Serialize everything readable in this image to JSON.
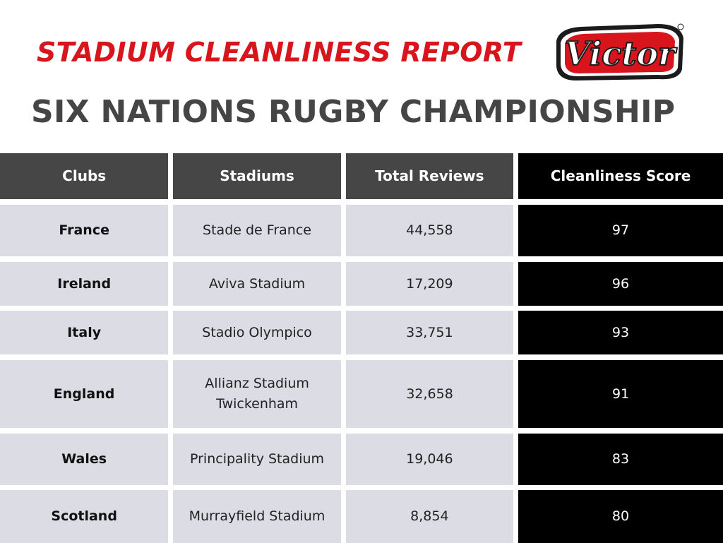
{
  "header": {
    "report_title": "STADIUM CLEANLINESS REPORT",
    "brand": "Victor",
    "championship_title": "SIX NATIONS RUGBY CHAMPIONSHIP"
  },
  "table": {
    "columns": [
      "Clubs",
      "Stadiums",
      "Total Reviews",
      "Cleanliness Score"
    ],
    "rows": [
      {
        "club": "France",
        "stadium": "Stade de France",
        "reviews": "44,558",
        "score": "97"
      },
      {
        "club": "Ireland",
        "stadium": "Aviva Stadium",
        "reviews": "17,209",
        "score": "96"
      },
      {
        "club": "Italy",
        "stadium": "Stadio Olympico",
        "reviews": "33,751",
        "score": "93"
      },
      {
        "club": "England",
        "stadium": "Allianz Stadium Twickenham",
        "reviews": "32,658",
        "score": "91"
      },
      {
        "club": "Wales",
        "stadium": "Principality Stadium",
        "reviews": "19,046",
        "score": "83"
      },
      {
        "club": "Scotland",
        "stadium": "Murrayfield Stadium",
        "reviews": "8,854",
        "score": "80"
      }
    ]
  },
  "colors": {
    "title_red": "#d8141c",
    "heading_gray": "#454545",
    "header_cell": "#464646",
    "row_cell": "#dcdce4",
    "score_cell": "#000000"
  }
}
